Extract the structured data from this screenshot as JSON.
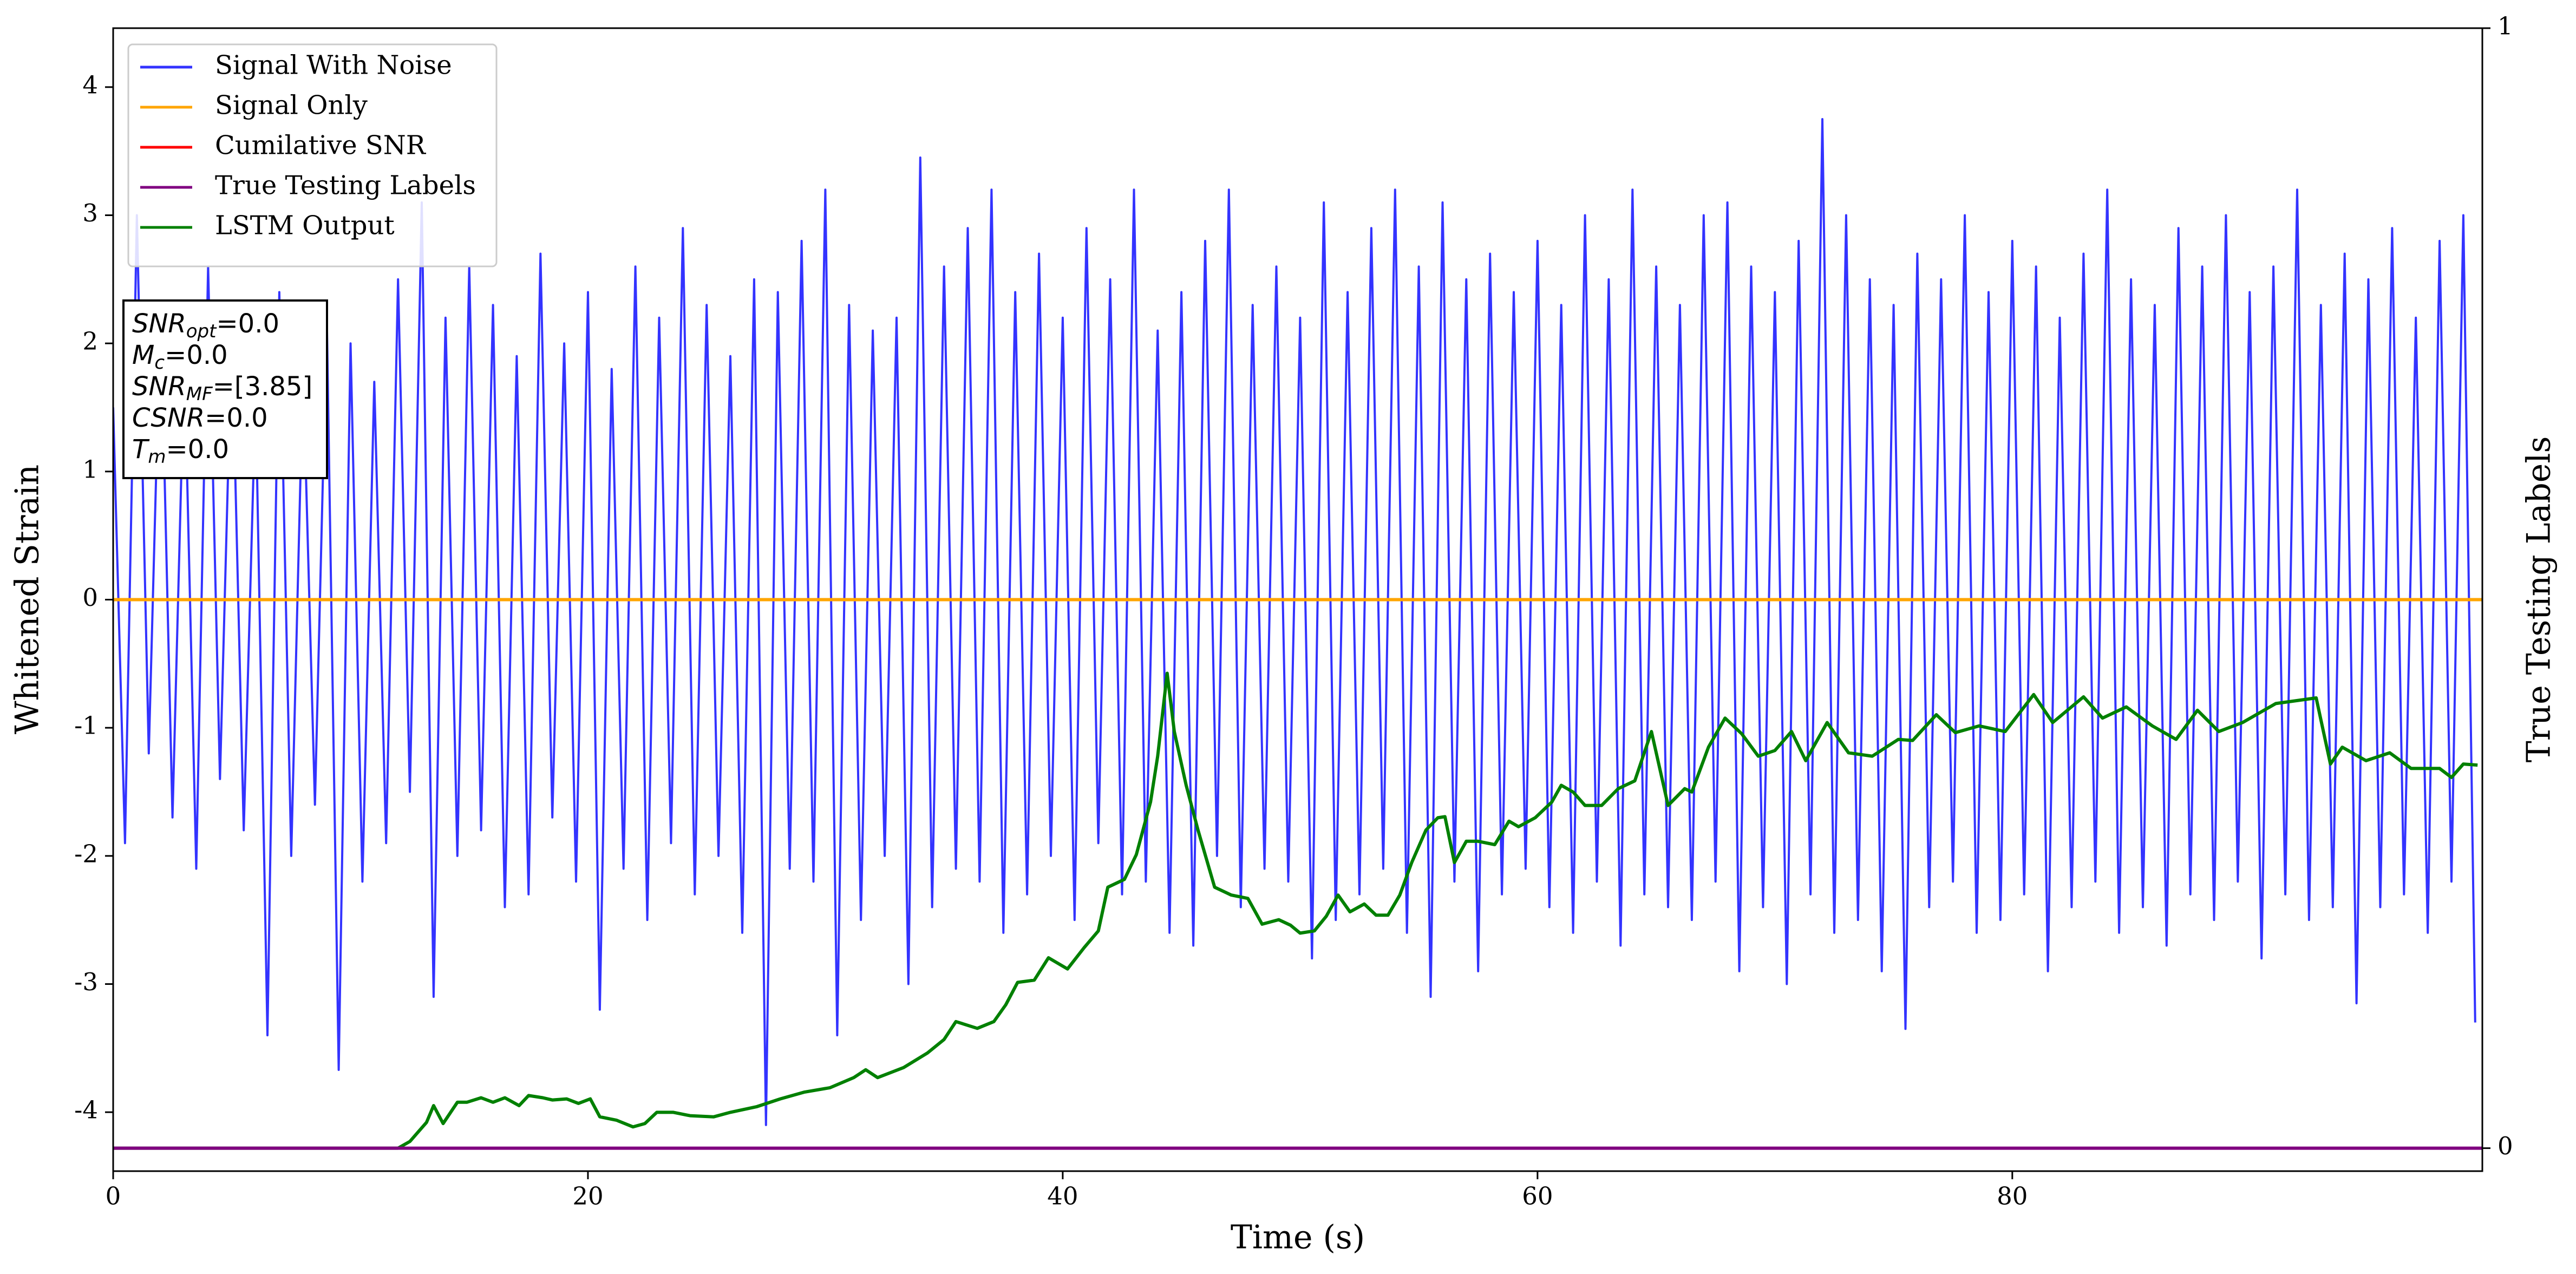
{
  "chart_data": {
    "type": "line",
    "xlabel": "Time (s)",
    "ylabel": "Whitened Strain",
    "y2label": "True Testing Labels",
    "xlim": [
      0,
      99.8
    ],
    "xticks": [
      0,
      20,
      40,
      60,
      80
    ],
    "ylim": [
      -4.46,
      4.46
    ],
    "yticks": [
      -4,
      -3,
      -2,
      -1,
      0,
      1,
      2,
      3,
      4
    ],
    "y2lim": [
      -0.0205,
      1
    ],
    "y2ticks": [
      0,
      1
    ],
    "legend": "upper left",
    "annotations": [
      {
        "name": "SNR",
        "subscript": "opt",
        "text": "=0.0"
      },
      {
        "name": "M",
        "subscript": "c",
        "text": "=0.0"
      },
      {
        "name": "SNR",
        "subscript": "MF",
        "text": "=[3.85]"
      },
      {
        "name": "CSNR",
        "subscript": null,
        "text": "=0.0"
      },
      {
        "name": "T",
        "subscript": "m",
        "text": "=0.0"
      }
    ],
    "series": [
      {
        "name": "Signal With Noise",
        "color": "#3333ff",
        "axis": "y",
        "x": [
          0,
          0.5,
          1,
          1.5,
          2,
          2.5,
          3,
          3.5,
          4,
          4.5,
          5,
          5.5,
          6,
          6.5,
          7,
          7.5,
          8,
          8.5,
          9,
          9.5,
          10,
          10.5,
          11,
          11.5,
          12,
          12.5,
          13,
          13.5,
          14,
          14.5,
          15,
          15.5,
          16,
          16.5,
          17,
          17.5,
          18,
          18.5,
          19,
          19.5,
          20,
          20.5,
          21,
          21.5,
          22,
          22.5,
          23,
          23.5,
          24,
          24.5,
          25,
          25.5,
          26,
          26.5,
          27,
          27.5,
          28,
          28.5,
          29,
          29.5,
          30,
          30.5,
          31,
          31.5,
          32,
          32.5,
          33,
          33.5,
          34,
          34.5,
          35,
          35.5,
          36,
          36.5,
          37,
          37.5,
          38,
          38.5,
          39,
          39.5,
          40,
          40.5,
          41,
          41.5,
          42,
          42.5,
          43,
          43.5,
          44,
          44.5,
          45,
          45.5,
          46,
          46.5,
          47,
          47.5,
          48,
          48.5,
          49,
          49.5,
          50,
          50.5,
          51,
          51.5,
          52,
          52.5,
          53,
          53.5,
          54,
          54.5,
          55,
          55.5,
          56,
          56.5,
          57,
          57.5,
          58,
          58.5,
          59,
          59.5,
          60,
          60.5,
          61,
          61.5,
          62,
          62.5,
          63,
          63.5,
          64,
          64.5,
          65,
          65.5,
          66,
          66.5,
          67,
          67.5,
          68,
          68.5,
          69,
          69.5,
          70,
          70.5,
          71,
          71.5,
          72,
          72.5,
          73,
          73.5,
          74,
          74.5,
          75,
          75.5,
          76,
          76.5,
          77,
          77.5,
          78,
          78.5,
          79,
          79.5,
          80,
          80.5,
          81,
          81.5,
          82,
          82.5,
          83,
          83.5,
          84,
          84.5,
          85,
          85.5,
          86,
          86.5,
          87,
          87.5,
          88,
          88.5,
          89,
          89.5,
          90,
          90.5,
          91,
          91.5,
          92,
          92.5,
          93,
          93.5,
          94,
          94.5,
          95,
          95.5,
          96,
          96.5,
          97,
          97.5,
          98,
          98.5,
          99,
          99.5
        ],
        "values": [
          1.5,
          -1.9,
          3.0,
          -1.2,
          2.3,
          -1.7,
          1.9,
          -2.1,
          2.6,
          -1.4,
          2.1,
          -1.8,
          1.6,
          -3.4,
          2.4,
          -2.0,
          1.8,
          -1.6,
          2.2,
          -3.67,
          2.0,
          -2.2,
          1.7,
          -1.9,
          2.5,
          -1.5,
          3.1,
          -3.1,
          2.2,
          -2.0,
          2.6,
          -1.8,
          2.3,
          -2.4,
          1.9,
          -2.3,
          2.7,
          -1.7,
          2.0,
          -2.2,
          2.4,
          -3.2,
          1.8,
          -2.1,
          2.6,
          -2.5,
          2.2,
          -1.9,
          2.9,
          -2.3,
          2.3,
          -2.0,
          1.9,
          -2.6,
          2.5,
          -4.1,
          2.4,
          -2.1,
          2.8,
          -2.2,
          3.2,
          -3.4,
          2.3,
          -2.5,
          2.1,
          -2.0,
          2.2,
          -3.0,
          3.45,
          -2.4,
          2.6,
          -2.1,
          2.9,
          -2.2,
          3.2,
          -2.6,
          2.4,
          -2.3,
          2.7,
          -2.0,
          2.2,
          -2.5,
          2.9,
          -1.9,
          2.5,
          -2.3,
          3.2,
          -2.2,
          2.1,
          -2.6,
          2.4,
          -2.7,
          2.8,
          -2.0,
          3.2,
          -2.4,
          2.3,
          -2.1,
          2.6,
          -2.2,
          2.2,
          -2.8,
          3.1,
          -2.5,
          2.4,
          -2.3,
          2.9,
          -2.1,
          3.2,
          -2.6,
          2.6,
          -3.1,
          3.1,
          -2.2,
          2.5,
          -2.9,
          2.7,
          -2.3,
          2.4,
          -2.1,
          2.8,
          -2.4,
          2.3,
          -2.6,
          3.0,
          -2.2,
          2.5,
          -2.7,
          3.2,
          -2.3,
          2.6,
          -2.4,
          2.3,
          -2.5,
          3.0,
          -2.2,
          3.1,
          -2.9,
          2.6,
          -2.4,
          2.4,
          -3.0,
          2.8,
          -2.3,
          3.75,
          -2.6,
          3.0,
          -2.5,
          2.5,
          -2.9,
          2.3,
          -3.35,
          2.7,
          -2.4,
          2.5,
          -2.2,
          3.0,
          -2.6,
          2.4,
          -2.5,
          2.8,
          -2.3,
          2.6,
          -2.9,
          2.2,
          -2.4,
          2.7,
          -2.2,
          3.2,
          -2.6,
          2.5,
          -2.4,
          2.3,
          -2.7,
          2.9,
          -2.3,
          2.6,
          -2.5,
          3.0,
          -2.2,
          2.4,
          -2.8,
          2.6,
          -2.3,
          3.2,
          -2.5,
          2.3,
          -2.4,
          2.7,
          -3.15,
          2.5,
          -2.4,
          2.9,
          -2.3,
          2.2,
          -2.6,
          2.8,
          -2.2,
          3.0,
          -3.3
        ]
      },
      {
        "name": "Signal Only",
        "color": "#ffa500",
        "axis": "y",
        "x": [
          0,
          99.8
        ],
        "values": [
          0,
          0
        ]
      },
      {
        "name": "Cumilative SNR",
        "color": "#ff0000",
        "axis": "y",
        "x": [
          0,
          99.8
        ],
        "values": [
          0,
          0
        ]
      },
      {
        "name": "True Testing Labels",
        "color": "#800080",
        "axis": "y2",
        "x": [
          0,
          99.8
        ],
        "values": [
          0,
          0
        ]
      },
      {
        "name": "LSTM Output",
        "color": "#008000",
        "axis": "y2",
        "x": [
          0,
          12,
          12.5,
          13.2,
          13.5,
          13.9,
          14.5,
          14.9,
          15.5,
          16,
          16.5,
          17.1,
          17.5,
          18.1,
          18.5,
          19.1,
          19.6,
          20.1,
          20.5,
          21.2,
          21.9,
          22.4,
          22.9,
          23.6,
          24.3,
          25.3,
          26,
          27.1,
          28.1,
          29.1,
          30.2,
          31.2,
          31.7,
          32.2,
          33.3,
          34.3,
          35,
          35.5,
          36.4,
          37.1,
          37.6,
          38.1,
          38.8,
          39.4,
          40.2,
          40.9,
          41.5,
          41.9,
          42.6,
          43.1,
          43.7,
          44,
          44.4,
          44.7,
          45.2,
          45.7,
          46.4,
          47.1,
          47.8,
          48.4,
          49.1,
          49.6,
          50,
          50.6,
          51.1,
          51.6,
          52.1,
          52.7,
          53.2,
          53.7,
          54.2,
          54.7,
          55.3,
          55.8,
          56.1,
          56.5,
          57,
          57.5,
          58.2,
          58.8,
          59.2,
          59.9,
          60.6,
          61,
          61.5,
          62,
          62.7,
          63.4,
          64.1,
          64.8,
          65.5,
          66.2,
          66.5,
          67.2,
          67.9,
          68.6,
          69.3,
          70,
          70.7,
          71.3,
          72.2,
          73.1,
          74.1,
          75.2,
          75.8,
          76.8,
          77.6,
          78.6,
          79.7,
          80.9,
          81.7,
          83,
          83.8,
          84.8,
          85.9,
          86.9,
          87.8,
          88.7,
          89.7,
          91.1,
          92.8,
          93.4,
          93.9,
          94.9,
          95.9,
          96.8,
          98,
          98.5,
          99,
          99.6
        ],
        "values": [
          0,
          0,
          0.006,
          0.023,
          0.038,
          0.022,
          0.041,
          0.041,
          0.045,
          0.041,
          0.045,
          0.038,
          0.047,
          0.045,
          0.043,
          0.044,
          0.04,
          0.044,
          0.028,
          0.025,
          0.019,
          0.022,
          0.032,
          0.032,
          0.029,
          0.028,
          0.032,
          0.037,
          0.044,
          0.05,
          0.054,
          0.063,
          0.07,
          0.063,
          0.072,
          0.085,
          0.097,
          0.113,
          0.107,
          0.113,
          0.128,
          0.148,
          0.15,
          0.17,
          0.16,
          0.179,
          0.194,
          0.233,
          0.24,
          0.262,
          0.309,
          0.35,
          0.424,
          0.372,
          0.324,
          0.284,
          0.233,
          0.226,
          0.223,
          0.2,
          0.204,
          0.199,
          0.192,
          0.194,
          0.207,
          0.226,
          0.211,
          0.218,
          0.208,
          0.208,
          0.226,
          0.255,
          0.284,
          0.295,
          0.296,
          0.255,
          0.274,
          0.274,
          0.271,
          0.292,
          0.287,
          0.295,
          0.309,
          0.324,
          0.318,
          0.306,
          0.306,
          0.321,
          0.328,
          0.372,
          0.306,
          0.321,
          0.318,
          0.358,
          0.384,
          0.37,
          0.35,
          0.355,
          0.372,
          0.346,
          0.38,
          0.353,
          0.35,
          0.365,
          0.364,
          0.387,
          0.371,
          0.377,
          0.372,
          0.405,
          0.38,
          0.403,
          0.384,
          0.394,
          0.377,
          0.365,
          0.391,
          0.372,
          0.38,
          0.397,
          0.402,
          0.343,
          0.358,
          0.346,
          0.353,
          0.339,
          0.339,
          0.331,
          0.343,
          0.342
        ]
      }
    ]
  }
}
